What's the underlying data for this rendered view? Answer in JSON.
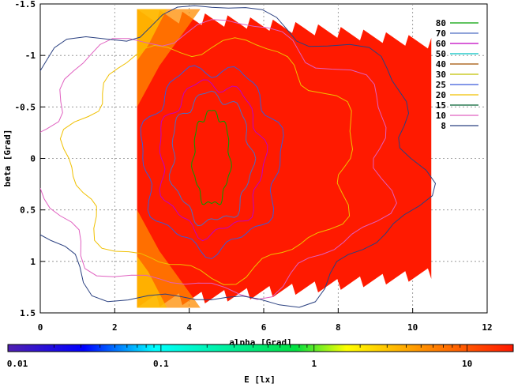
{
  "chart_data": {
    "type": "heatmap",
    "title": "",
    "xlabel": "alpha [Grad]",
    "ylabel": "beta [Grad]",
    "xlim": [
      0,
      12
    ],
    "ylim": [
      1.5,
      -1.5
    ],
    "x_ticks": [
      "0",
      "2",
      "4",
      "6",
      "8",
      "10",
      "12"
    ],
    "y_ticks": [
      "-1.5",
      "-1",
      "-0.5",
      "0",
      "0.5",
      "1",
      "1.5"
    ],
    "grid": true,
    "data_extent": {
      "alpha": [
        2.6,
        10.5
      ],
      "beta": [
        -1.45,
        1.45
      ]
    },
    "contour_legend": {
      "placement": "top-right",
      "levels": [
        {
          "label": "80",
          "color": "#00a000"
        },
        {
          "label": "70",
          "color": "#4d6ec2"
        },
        {
          "label": "60",
          "color": "#c000c0"
        },
        {
          "label": "50",
          "color": "#00c0c0"
        },
        {
          "label": "40",
          "color": "#a05000"
        },
        {
          "label": "30",
          "color": "#c0c000"
        },
        {
          "label": "25",
          "color": "#3a5bd9"
        },
        {
          "label": "20",
          "color": "#f0c000"
        },
        {
          "label": "15",
          "color": "#006030"
        },
        {
          "label": "10",
          "color": "#e060c0"
        },
        {
          "label": "8",
          "color": "#2a4080"
        }
      ]
    },
    "colorbar": {
      "label": "E [lx]",
      "scale": "log",
      "range": [
        0.01,
        20
      ],
      "ticks": [
        "0.01",
        "0.1",
        "1",
        "10"
      ]
    }
  }
}
